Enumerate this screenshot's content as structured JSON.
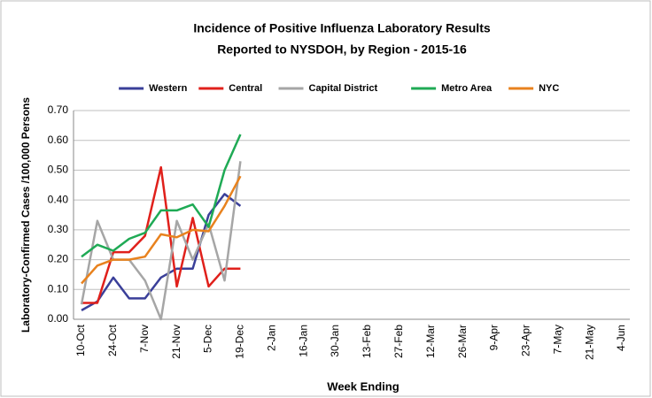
{
  "chart_data": {
    "type": "line",
    "title": [
      "Incidence of Positive Influenza Laboratory Results",
      "Reported to NYSDOH, by Region - 2015-16"
    ],
    "x_label": "Week Ending",
    "y_label": "Laboratory-Confirmed Cases /100,000 Persons",
    "categories": [
      "10-Oct",
      null,
      "24-Oct",
      null,
      "7-Nov",
      null,
      "21-Nov",
      null,
      "5-Dec",
      null,
      "19-Dec",
      null,
      "2-Jan",
      null,
      "16-Jan",
      null,
      "30-Jan",
      null,
      "13-Feb",
      null,
      "27-Feb",
      null,
      "12-Mar",
      null,
      "26-Mar",
      null,
      "9-Apr",
      null,
      "23-Apr",
      null,
      "7-May",
      null,
      "21-May",
      null,
      "4-Jun"
    ],
    "series": [
      {
        "name": "Western",
        "color": "#3a3f99",
        "values": [
          0.03,
          0.06,
          0.14,
          0.07,
          0.07,
          0.14,
          0.17,
          0.17,
          0.35,
          0.42,
          0.38,
          null,
          null,
          null,
          null,
          null,
          null,
          null,
          null,
          null,
          null,
          null,
          null,
          null,
          null,
          null,
          null,
          null,
          null,
          null,
          null,
          null,
          null,
          null,
          null
        ]
      },
      {
        "name": "Central",
        "color": "#e0201b",
        "values": [
          0.055,
          0.055,
          0.225,
          0.225,
          0.28,
          0.51,
          0.11,
          0.34,
          0.11,
          0.17,
          0.17,
          null,
          null,
          null,
          null,
          null,
          null,
          null,
          null,
          null,
          null,
          null,
          null,
          null,
          null,
          null,
          null,
          null,
          null,
          null,
          null,
          null,
          null,
          null,
          null
        ]
      },
      {
        "name": "Capital District",
        "color": "#a6a6a6",
        "values": [
          0.05,
          0.33,
          0.2,
          0.2,
          0.13,
          0.0,
          0.33,
          0.2,
          0.32,
          0.13,
          0.53,
          null,
          null,
          null,
          null,
          null,
          null,
          null,
          null,
          null,
          null,
          null,
          null,
          null,
          null,
          null,
          null,
          null,
          null,
          null,
          null,
          null,
          null,
          null,
          null
        ]
      },
      {
        "name": "Metro Area",
        "color": "#1faa55",
        "values": [
          0.21,
          0.25,
          0.23,
          0.27,
          0.29,
          0.365,
          0.365,
          0.385,
          0.31,
          0.5,
          0.62,
          null,
          null,
          null,
          null,
          null,
          null,
          null,
          null,
          null,
          null,
          null,
          null,
          null,
          null,
          null,
          null,
          null,
          null,
          null,
          null,
          null,
          null,
          null,
          null
        ]
      },
      {
        "name": "NYC",
        "color": "#e8821e",
        "values": [
          0.12,
          0.18,
          0.2,
          0.2,
          0.21,
          0.285,
          0.275,
          0.3,
          0.295,
          0.38,
          0.48,
          null,
          null,
          null,
          null,
          null,
          null,
          null,
          null,
          null,
          null,
          null,
          null,
          null,
          null,
          null,
          null,
          null,
          null,
          null,
          null,
          null,
          null,
          null,
          null
        ]
      }
    ],
    "ylim": [
      0,
      0.7
    ],
    "yticks": [
      {
        "value": 0,
        "label": "0.00"
      },
      {
        "value": 0.1,
        "label": "0.10"
      },
      {
        "value": 0.2,
        "label": "0.20"
      },
      {
        "value": 0.3,
        "label": "0.30"
      },
      {
        "value": 0.4,
        "label": "0.40"
      },
      {
        "value": 0.5,
        "label": "0.50"
      },
      {
        "value": 0.6,
        "label": "0.60"
      },
      {
        "value": 0.7,
        "label": "0.70"
      }
    ],
    "grid": true,
    "legend": "top"
  }
}
